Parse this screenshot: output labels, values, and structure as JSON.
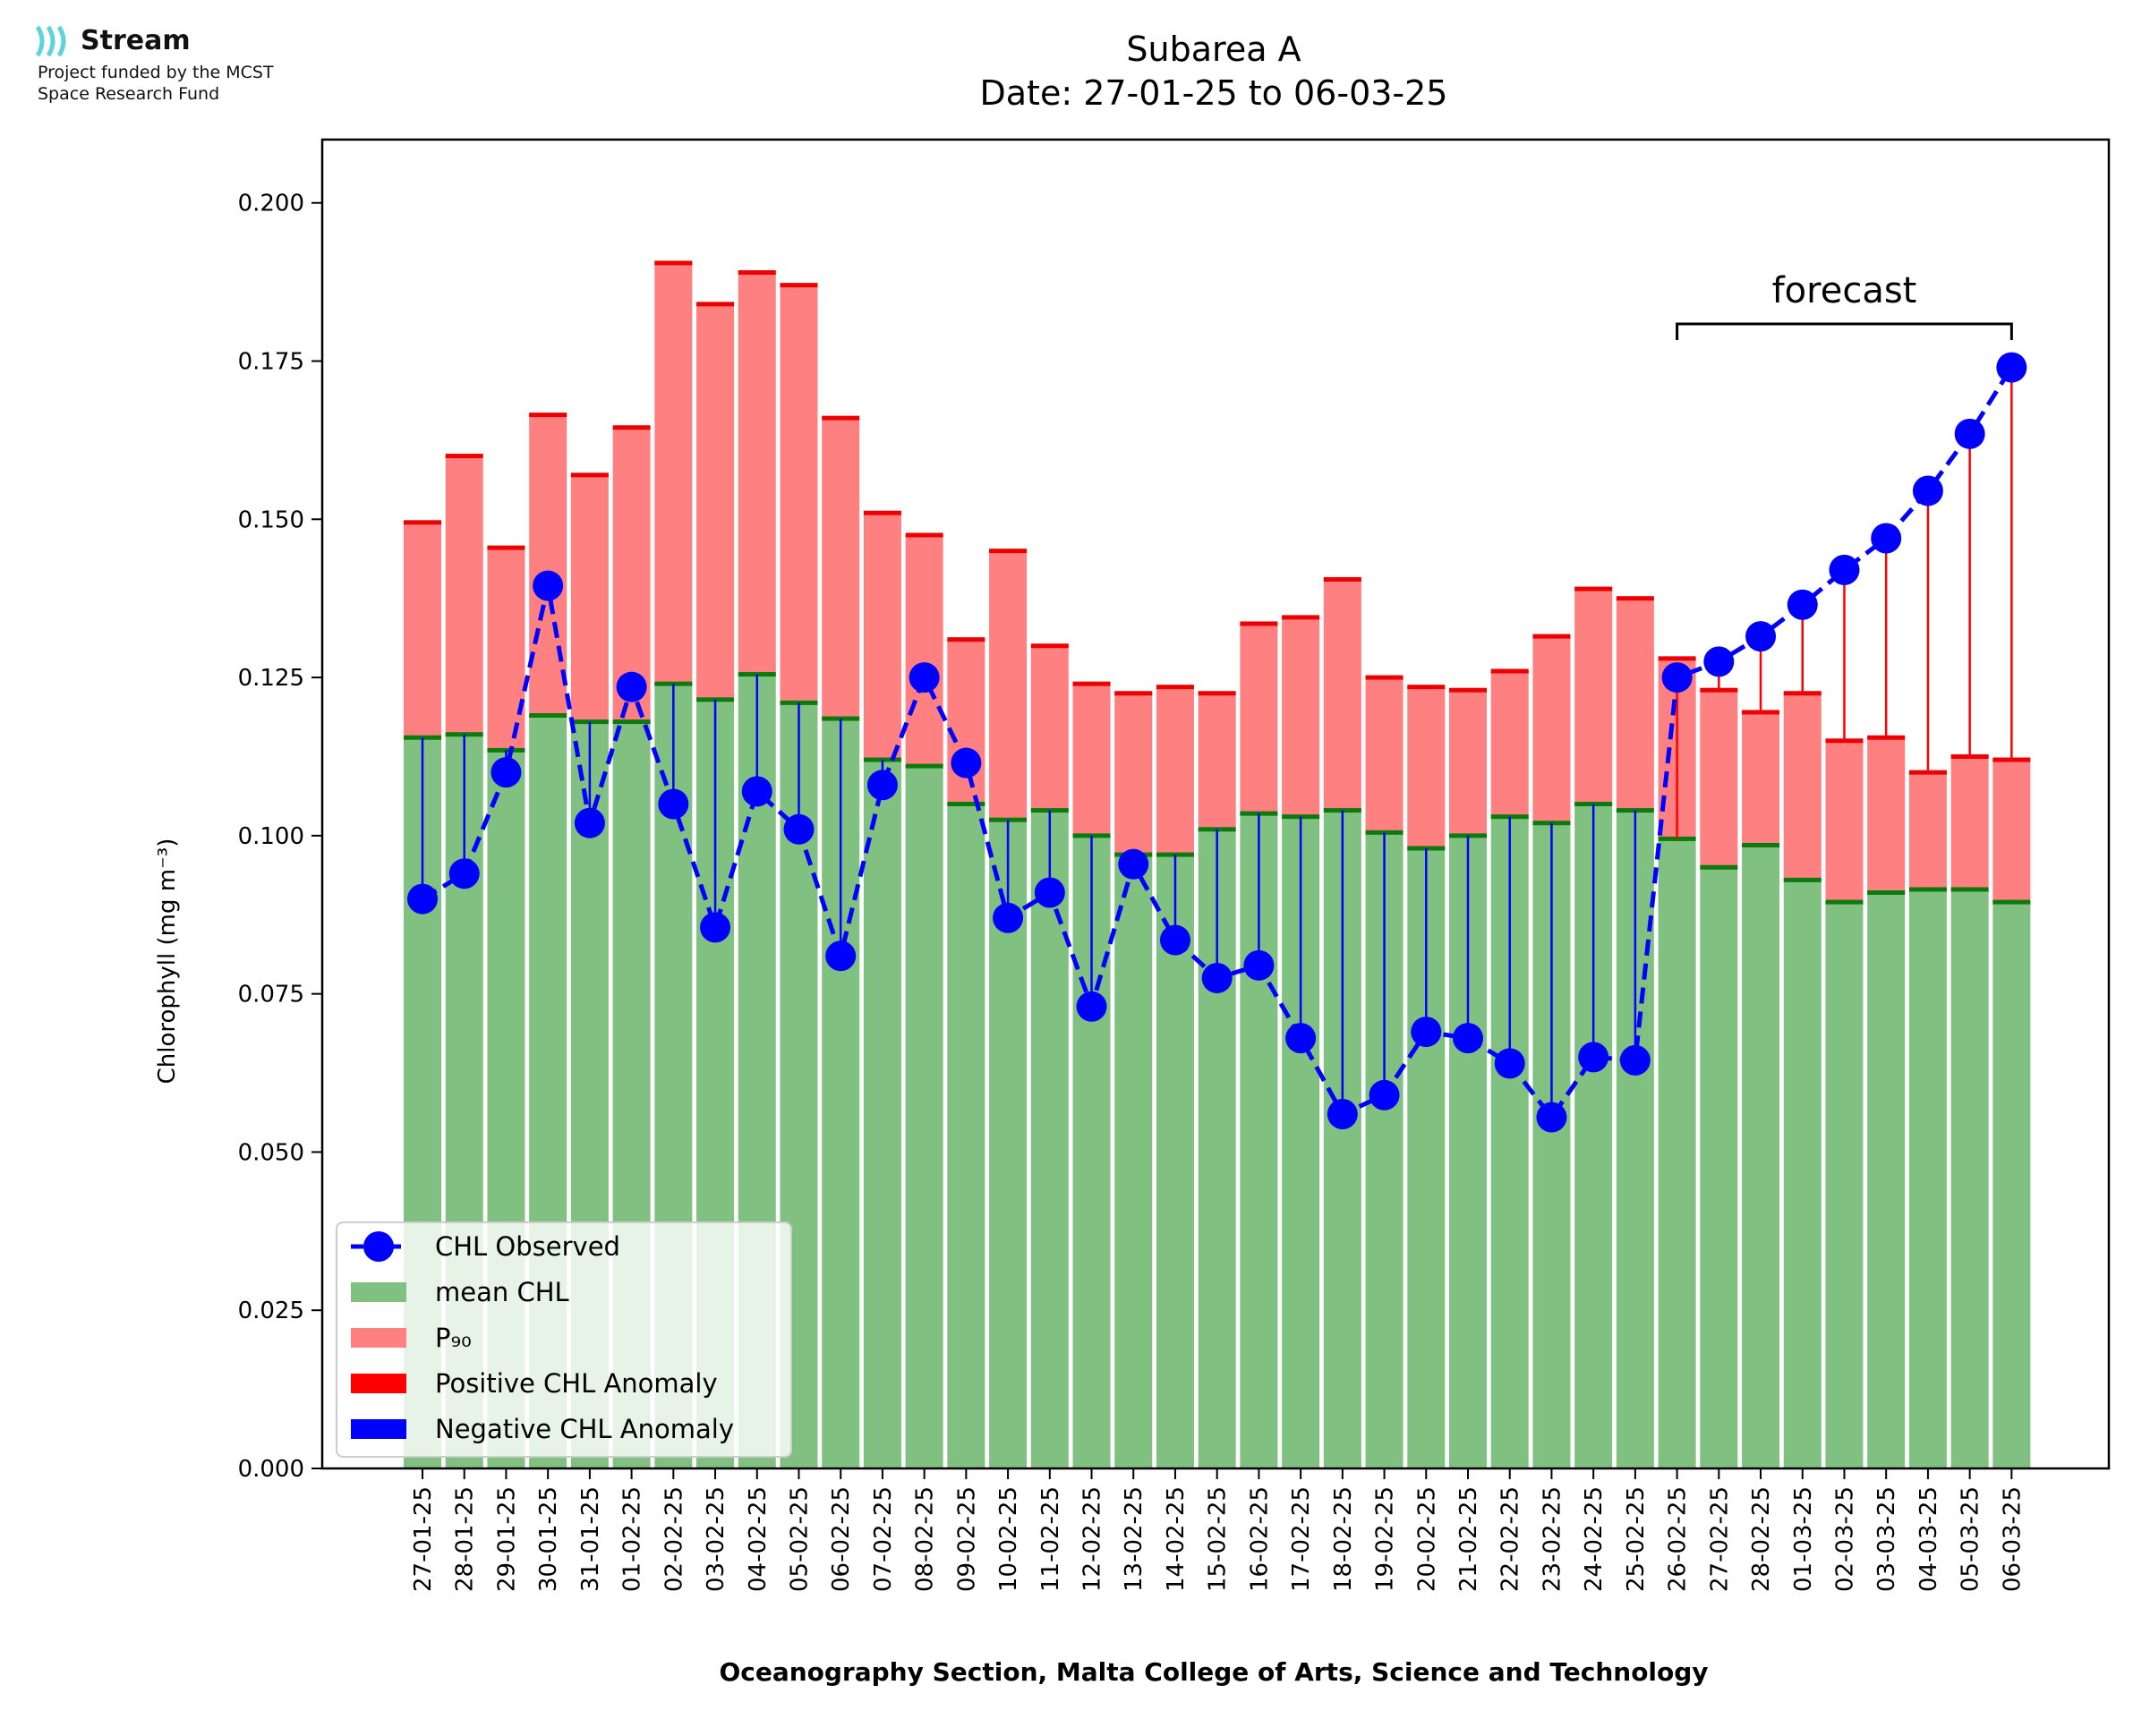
{
  "logo": {
    "name": "Stream",
    "line1": "Project funded by the MCST",
    "line2": "Space Research Fund",
    "color": "#5fd3dc"
  },
  "chart_data": {
    "type": "bar",
    "title": "Subarea A",
    "subtitle": "Date: 27-01-25 to 06-03-25",
    "xlabel": "Oceanography Section, Malta College of Arts, Science and Technology",
    "ylabel": "Chlorophyll (mg m⁻³)",
    "ylim": [
      0,
      0.21
    ],
    "yticks": [
      "0.000",
      "0.025",
      "0.050",
      "0.075",
      "0.100",
      "0.125",
      "0.150",
      "0.175",
      "0.200"
    ],
    "grid": false,
    "legend_position": "lower-left",
    "categories": [
      "27-01-25",
      "28-01-25",
      "29-01-25",
      "30-01-25",
      "31-01-25",
      "01-02-25",
      "02-02-25",
      "03-02-25",
      "04-02-25",
      "05-02-25",
      "06-02-25",
      "07-02-25",
      "08-02-25",
      "09-02-25",
      "10-02-25",
      "11-02-25",
      "12-02-25",
      "13-02-25",
      "14-02-25",
      "15-02-25",
      "16-02-25",
      "17-02-25",
      "18-02-25",
      "19-02-25",
      "20-02-25",
      "21-02-25",
      "22-02-25",
      "23-02-25",
      "24-02-25",
      "25-02-25",
      "26-02-25",
      "27-02-25",
      "28-02-25",
      "01-03-25",
      "02-03-25",
      "03-03-25",
      "04-03-25",
      "05-03-25",
      "06-03-25"
    ],
    "series": [
      {
        "name": "CHL Observed",
        "kind": "line",
        "color": "#0000ff",
        "values": [
          0.09,
          0.094,
          0.11,
          0.1395,
          0.102,
          0.1235,
          0.105,
          0.0855,
          0.107,
          0.101,
          0.081,
          0.108,
          0.125,
          0.1115,
          0.087,
          0.091,
          0.073,
          0.0955,
          0.0835,
          0.0775,
          0.0795,
          0.068,
          0.056,
          0.059,
          0.069,
          0.068,
          0.064,
          0.0555,
          0.065,
          0.0645,
          0.125,
          0.1275,
          0.1315,
          0.1365,
          0.142,
          0.147,
          0.1545,
          0.1635,
          0.174
        ]
      },
      {
        "name": "mean CHL",
        "kind": "bar",
        "color": "#80c080",
        "values": [
          0.1155,
          0.116,
          0.1135,
          0.119,
          0.118,
          0.118,
          0.124,
          0.1215,
          0.1255,
          0.121,
          0.1185,
          0.112,
          0.111,
          0.105,
          0.1025,
          0.104,
          0.1,
          0.097,
          0.097,
          0.101,
          0.1035,
          0.103,
          0.104,
          0.1005,
          0.098,
          0.1,
          0.103,
          0.102,
          0.105,
          0.104,
          0.0995,
          0.095,
          0.0985,
          0.093,
          0.0895,
          0.091,
          0.0915,
          0.0915,
          0.0895
        ]
      },
      {
        "name": "P₉₀",
        "kind": "bar",
        "color": "#ff8080",
        "values": [
          0.1495,
          0.16,
          0.1455,
          0.1665,
          0.157,
          0.1645,
          0.1905,
          0.184,
          0.189,
          0.187,
          0.166,
          0.151,
          0.1475,
          0.131,
          0.145,
          0.13,
          0.124,
          0.1225,
          0.1235,
          0.1225,
          0.1335,
          0.1345,
          0.1405,
          0.125,
          0.1235,
          0.123,
          0.126,
          0.1315,
          0.139,
          0.1375,
          0.128,
          0.123,
          0.1195,
          0.1225,
          0.115,
          0.1155,
          0.11,
          0.1125,
          0.112
        ]
      },
      {
        "name": "Positive CHL Anomaly",
        "kind": "stem",
        "color": "#ff0000"
      },
      {
        "name": "Negative CHL Anomaly",
        "kind": "stem",
        "color": "#0000ff"
      }
    ],
    "annotations": [
      {
        "text": "forecast",
        "from": "26-02-25",
        "to": "06-03-25"
      }
    ]
  }
}
